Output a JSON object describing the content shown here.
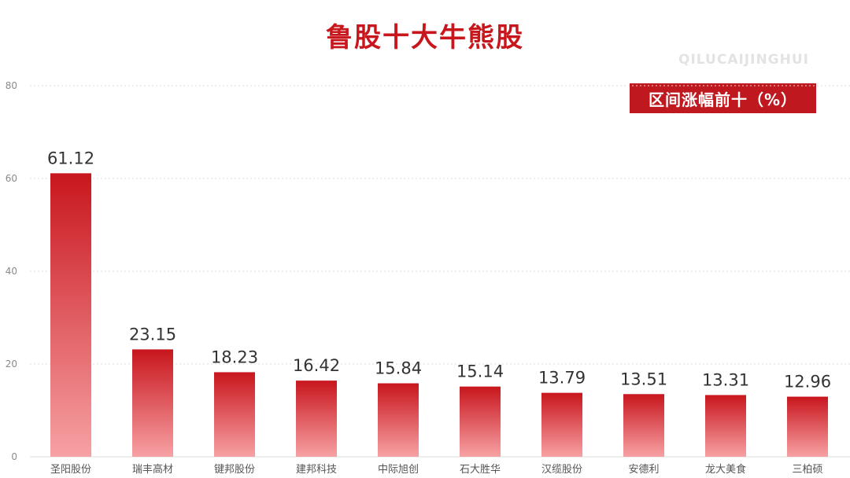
{
  "header": {
    "title": "鲁股十大牛熊股",
    "watermark": "QILUCAIJINGHUI",
    "badge": "区间涨幅前十（%）"
  },
  "colors": {
    "accent": "#c0181f",
    "bar_top": "#c8161d",
    "bar_bottom": "#f7a1a4",
    "grid": "#dddddd"
  },
  "chart_data": {
    "type": "bar",
    "title": "鲁股十大牛熊股",
    "legend": "区间涨幅前十（%）",
    "categories": [
      "圣阳股份",
      "瑞丰高材",
      "键邦股份",
      "建邦科技",
      "中际旭创",
      "石大胜华",
      "汉缆股份",
      "安德利",
      "龙大美食",
      "三柏硕"
    ],
    "values": [
      61.12,
      23.15,
      18.23,
      16.42,
      15.84,
      15.14,
      13.79,
      13.51,
      13.31,
      12.96
    ],
    "value_labels": [
      "61.12",
      "23.15",
      "18.23",
      "16.42",
      "15.84",
      "15.14",
      "13.79",
      "13.51",
      "13.31",
      "12.96"
    ],
    "yticks": [
      "0",
      "20",
      "40",
      "60",
      "80"
    ],
    "ylim": [
      0,
      80
    ],
    "grid": true,
    "legend_position": "top-right"
  }
}
